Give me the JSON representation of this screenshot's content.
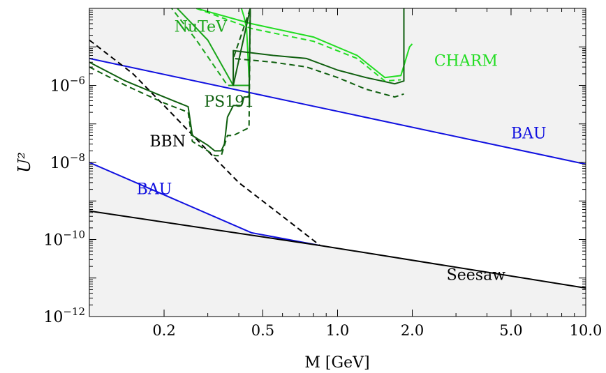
{
  "chart_data": {
    "type": "line",
    "title": "",
    "xlabel": "M [GeV]",
    "ylabel": "U²",
    "xscale": "log",
    "yscale": "log",
    "xlim": [
      0.1,
      10.0
    ],
    "ylim": [
      1e-12,
      0.0001
    ],
    "grid": false,
    "x_ticks": [
      {
        "value": 0.2,
        "label": "0.2"
      },
      {
        "value": 0.5,
        "label": "0.5"
      },
      {
        "value": 1.0,
        "label": "1.0"
      },
      {
        "value": 2.0,
        "label": "2.0"
      },
      {
        "value": 5.0,
        "label": "5.0"
      },
      {
        "value": 10.0,
        "label": "10.0"
      }
    ],
    "y_ticks": [
      {
        "value": 1e-06,
        "base": "10",
        "exp": "−6"
      },
      {
        "value": 1e-08,
        "base": "10",
        "exp": "−8"
      },
      {
        "value": 1e-10,
        "base": "10",
        "exp": "−10"
      },
      {
        "value": 1e-12,
        "base": "10",
        "exp": "−12"
      }
    ],
    "colors": {
      "excluded_fill": "#f2f2f2",
      "bau": "#1010e0",
      "seesaw": "#000000",
      "bbn": "#000000",
      "nutev": "#1aa61a",
      "charm": "#22dd22",
      "ps191": "#0f5f0f"
    },
    "annotations": [
      {
        "text": "NuTeV",
        "x": 0.22,
        "y": 2.5e-05,
        "color": "#1aa61a"
      },
      {
        "text": "CHARM",
        "x": 2.45,
        "y": 3.2e-06,
        "color": "#22dd22"
      },
      {
        "text": "PS191",
        "x": 0.29,
        "y": 2.8e-07,
        "color": "#0f5f0f"
      },
      {
        "text": "BBN",
        "x": 0.175,
        "y": 2.6e-08,
        "color": "#000000"
      },
      {
        "text": "BAU",
        "x": 5.0,
        "y": 4.2e-08,
        "color": "#1010e0"
      },
      {
        "text": "BAU",
        "x": 0.155,
        "y": 1.5e-09,
        "color": "#1010e0"
      },
      {
        "text": "Seesaw",
        "x": 2.75,
        "y": 9e-12,
        "color": "#000000"
      }
    ],
    "series": [
      {
        "id": "bau_upper",
        "style": "solid",
        "color": "#1010e0",
        "x": [
          0.1,
          10.0
        ],
        "y": [
          5e-06,
          9e-09
        ]
      },
      {
        "id": "bau_lower",
        "style": "solid",
        "color": "#1010e0",
        "x": [
          0.1,
          0.45,
          0.85
        ],
        "y": [
          1e-08,
          1.5e-10,
          7e-11
        ]
      },
      {
        "id": "seesaw",
        "style": "solid",
        "color": "#000000",
        "x": [
          0.1,
          0.85,
          10.0
        ],
        "y": [
          5.5e-10,
          7e-11,
          5.5e-12
        ]
      },
      {
        "id": "bbn",
        "style": "dashed",
        "color": "#000000",
        "x": [
          0.1,
          0.15,
          0.2,
          0.3,
          0.4,
          0.6,
          0.85
        ],
        "y": [
          1.5e-05,
          2e-06,
          3e-07,
          2e-08,
          3e-09,
          4e-10,
          7e-11
        ]
      },
      {
        "id": "nutev_solid",
        "style": "solid",
        "color": "#1aa61a",
        "x": [
          0.22,
          0.3,
          0.38,
          0.44
        ],
        "y": [
          0.00012,
          1.5e-05,
          1e-06,
          1e-06
        ]
      },
      {
        "id": "nutev_dashed",
        "style": "dashed",
        "color": "#1aa61a",
        "x": [
          0.21,
          0.27,
          0.36,
          0.4
        ],
        "y": [
          0.00012,
          1.5e-05,
          1e-06,
          1e-06
        ]
      },
      {
        "id": "charm_solid",
        "style": "solid",
        "color": "#22dd22",
        "x": [
          0.27,
          0.45,
          0.8,
          1.2,
          1.55,
          1.8,
          1.95,
          2.0
        ],
        "y": [
          0.0001,
          4e-05,
          1.8e-05,
          6e-06,
          1.6e-06,
          1.8e-06,
          1e-05,
          1.2e-05
        ]
      },
      {
        "id": "charm_dashed",
        "style": "dashed",
        "color": "#22dd22",
        "x": [
          0.27,
          0.45,
          0.8,
          1.2,
          1.55,
          1.8
        ],
        "y": [
          0.0001,
          3e-05,
          1.4e-05,
          5e-06,
          1.3e-06,
          1.4e-06
        ]
      },
      {
        "id": "charm_left_wall",
        "style": "solid",
        "color": "#22dd22",
        "x": [
          0.41,
          0.42,
          0.43,
          0.44
        ],
        "y": [
          0.0001,
          6e-05,
          3e-05,
          1.6e-06
        ]
      },
      {
        "id": "charm_right_wall",
        "style": "solid",
        "color": "#22dd22",
        "x": [
          1.85,
          1.85
        ],
        "y": [
          0.0001,
          1.6e-06
        ]
      },
      {
        "id": "ps191_solid",
        "style": "solid",
        "color": "#0f5f0f",
        "x": [
          0.1,
          0.14,
          0.2,
          0.25,
          0.26,
          0.3,
          0.32,
          0.34,
          0.35,
          0.36,
          0.38,
          0.41,
          0.42,
          0.44,
          0.445,
          0.445,
          0.38,
          0.38,
          0.55,
          0.75,
          1.0,
          1.3,
          1.7,
          1.85,
          1.85
        ],
        "y": [
          4e-06,
          1.3e-06,
          5e-07,
          2.8e-07,
          5e-08,
          2.8e-08,
          2e-08,
          2e-08,
          3e-08,
          1.5e-07,
          3e-07,
          3e-07,
          5e-07,
          5e-07,
          0.0001,
          0.0001,
          1e-06,
          8e-06,
          6e-06,
          5e-06,
          2.5e-06,
          1.6e-06,
          1.1e-06,
          1.3e-06,
          0.0001
        ]
      },
      {
        "id": "ps191_dashed",
        "style": "dashed",
        "color": "#0f5f0f",
        "x": [
          0.1,
          0.14,
          0.2,
          0.25,
          0.26,
          0.3,
          0.32,
          0.34,
          0.36,
          0.38,
          0.44,
          0.445,
          0.445,
          0.38,
          0.55,
          0.75,
          1.0,
          1.3,
          1.7,
          1.85
        ],
        "y": [
          3e-06,
          1e-06,
          3.5e-07,
          2e-07,
          3.5e-08,
          2e-08,
          1.5e-08,
          1.5e-08,
          5e-08,
          5e-08,
          8e-08,
          0.0001,
          0.0001,
          5e-06,
          4e-06,
          3e-06,
          1.6e-06,
          8e-07,
          5e-07,
          6e-07
        ]
      }
    ]
  }
}
